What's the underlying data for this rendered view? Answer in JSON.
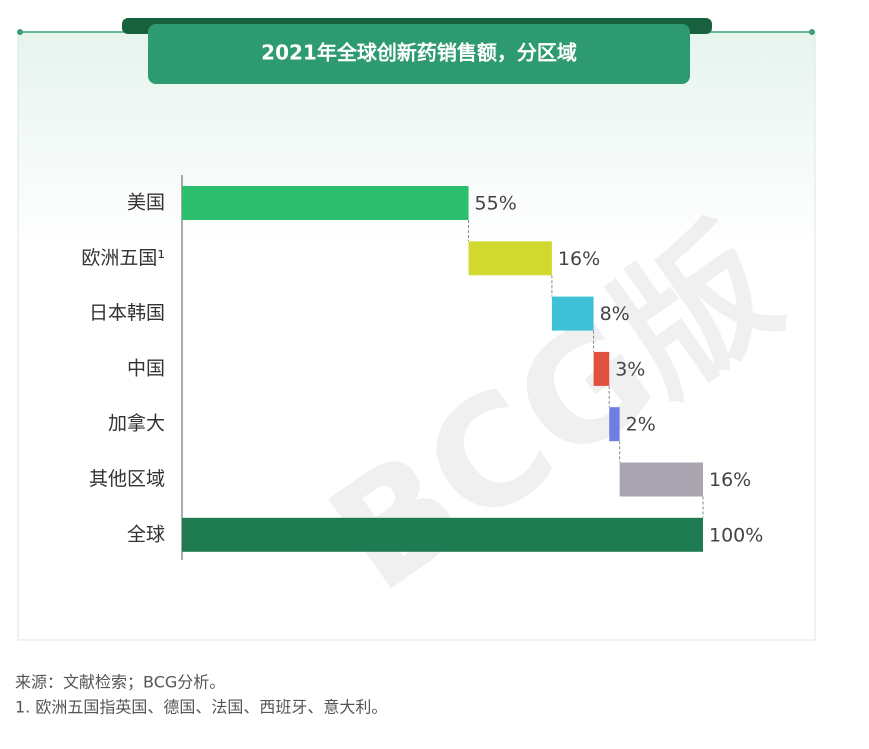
{
  "chart_data": {
    "type": "waterfall",
    "title": "2021年全球创新药销售额，分区域",
    "categories": [
      "美国",
      "欧洲五国¹",
      "日本韩国",
      "中国",
      "加拿大",
      "其他区域",
      "全球"
    ],
    "values": [
      55,
      16,
      8,
      3,
      2,
      16,
      100
    ],
    "value_labels": [
      "55%",
      "16%",
      "8%",
      "3%",
      "2%",
      "16%",
      "100%"
    ],
    "total": [
      false,
      false,
      false,
      false,
      false,
      false,
      true
    ],
    "colors": [
      "#2dbf6e",
      "#d2d92e",
      "#3fc2d8",
      "#e2513f",
      "#6f7fe0",
      "#a9a6b2",
      "#1e7a50"
    ],
    "xlim": [
      0,
      100
    ],
    "watermark": "BCG版",
    "source": "来源：文献检索；BCG分析。",
    "note": "1. 欧洲五国指英国、德国、法国、西班牙、意大利。"
  }
}
